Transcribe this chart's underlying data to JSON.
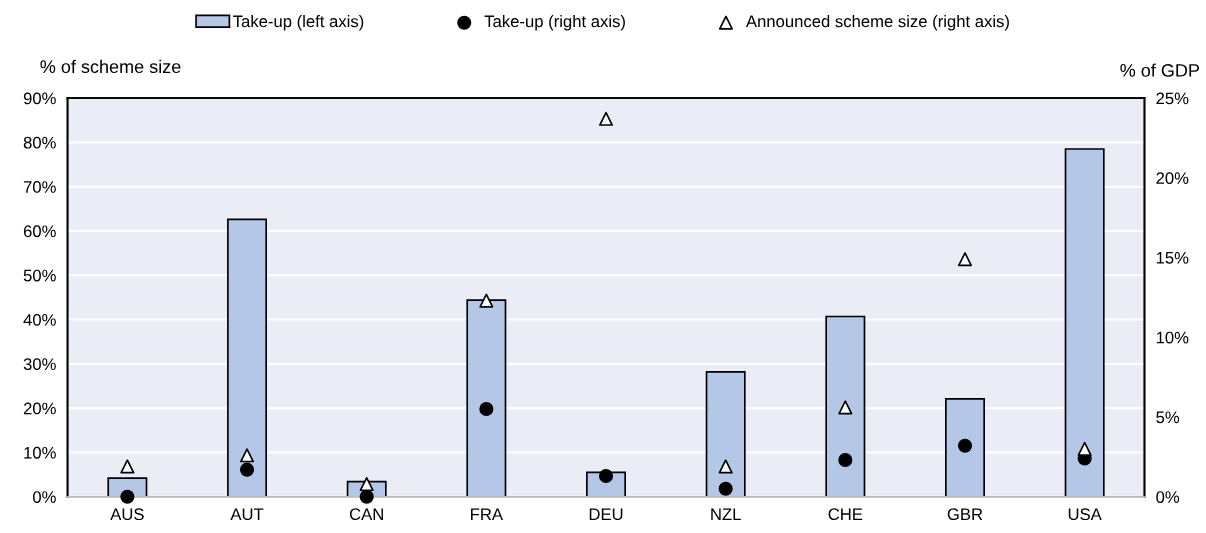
{
  "chart_data": {
    "type": "bar",
    "categories": [
      "AUS",
      "AUT",
      "CAN",
      "FRA",
      "DEU",
      "NZL",
      "CHE",
      "GBR",
      "USA"
    ],
    "ylabel": "% of scheme size",
    "y2label": "% of GDP",
    "series": [
      {
        "name": "Take-up (left axis)",
        "color": "#b4c7e7",
        "values": [
          4.2,
          62.6,
          3.4,
          44.4,
          5.5,
          28.2,
          40.7,
          22.1,
          78.5
        ]
      },
      {
        "name": "Take-up (right axis)",
        "type": "scatter",
        "marker": "circle",
        "axis": "y2",
        "color": "#000000",
        "values": [
          0.0,
          1.7,
          0.0,
          5.5,
          1.3,
          0.5,
          2.3,
          3.2,
          2.4
        ]
      },
      {
        "name": "Announced scheme size (right axis)",
        "type": "scatter",
        "marker": "triangle",
        "axis": "y2",
        "color": "#ffffff",
        "values": [
          1.9,
          2.6,
          0.8,
          12.3,
          23.7,
          1.9,
          5.6,
          14.9,
          3.0
        ]
      }
    ],
    "ylim": [
      0,
      90
    ],
    "yticks": [
      {
        "value": 0,
        "label": "0%"
      },
      {
        "value": 10,
        "label": "10%"
      },
      {
        "value": 20,
        "label": "20%"
      },
      {
        "value": 30,
        "label": "30%"
      },
      {
        "value": 40,
        "label": "40%"
      },
      {
        "value": 50,
        "label": "50%"
      },
      {
        "value": 60,
        "label": "60%"
      },
      {
        "value": 70,
        "label": "70%"
      },
      {
        "value": 80,
        "label": "80%"
      },
      {
        "value": 90,
        "label": "90%"
      }
    ],
    "y2lim": [
      0,
      25
    ],
    "y2ticks": [
      {
        "value": 0,
        "label": "0%"
      },
      {
        "value": 5,
        "label": "5%"
      },
      {
        "value": 10,
        "label": "10%"
      },
      {
        "value": 15,
        "label": "15%"
      },
      {
        "value": 20,
        "label": "20%"
      },
      {
        "value": 25,
        "label": "25%"
      }
    ],
    "grid": "y",
    "legend": "top"
  }
}
